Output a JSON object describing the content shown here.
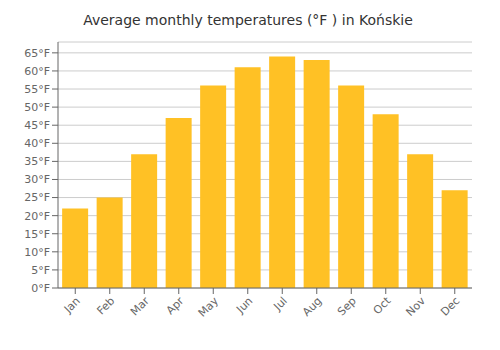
{
  "chart_data": {
    "type": "bar",
    "title": "Average monthly temperatures (°F ) in Końskie",
    "categories": [
      "Jan",
      "Feb",
      "Mar",
      "Apr",
      "May",
      "Jun",
      "Jul",
      "Aug",
      "Sep",
      "Oct",
      "Nov",
      "Dec"
    ],
    "values": [
      22,
      25,
      37,
      47,
      56,
      61,
      64,
      63,
      56,
      48,
      37,
      27
    ],
    "color": "#FFC125",
    "ylim": [
      0,
      68
    ],
    "yticks": [
      {
        "value": 0,
        "label": "0°F"
      },
      {
        "value": 5,
        "label": "5°F"
      },
      {
        "value": 10,
        "label": "10°F"
      },
      {
        "value": 15,
        "label": "15°F"
      },
      {
        "value": 20,
        "label": "20°F"
      },
      {
        "value": 25,
        "label": "25°F"
      },
      {
        "value": 30,
        "label": "30°F"
      },
      {
        "value": 35,
        "label": "35°F"
      },
      {
        "value": 40,
        "label": "40°F"
      },
      {
        "value": 45,
        "label": "45°F"
      },
      {
        "value": 50,
        "label": "50°F"
      },
      {
        "value": 55,
        "label": "55°F"
      },
      {
        "value": 60,
        "label": "60°F"
      },
      {
        "value": 65,
        "label": "65°F"
      }
    ],
    "grid": true
  }
}
